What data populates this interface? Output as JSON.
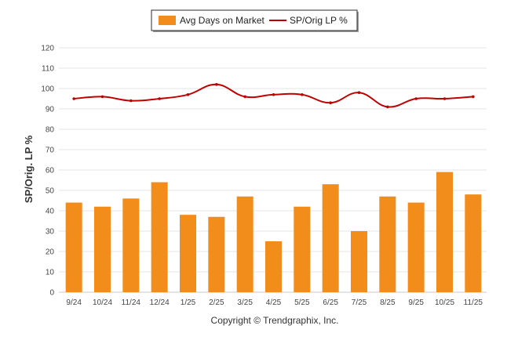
{
  "chart_data": {
    "type": "bar",
    "categories": [
      "9/24",
      "10/24",
      "11/24",
      "12/24",
      "1/25",
      "2/25",
      "3/25",
      "4/25",
      "5/25",
      "6/25",
      "7/25",
      "8/25",
      "9/25",
      "10/25",
      "11/25"
    ],
    "series": [
      {
        "name": "Avg Days on Market",
        "type": "bar",
        "color": "#F28C1B",
        "values": [
          44,
          42,
          46,
          54,
          38,
          37,
          47,
          25,
          42,
          53,
          30,
          47,
          44,
          59,
          48
        ]
      },
      {
        "name": "SP/Orig LP %",
        "type": "line",
        "color": "#C00000",
        "values": [
          95,
          96,
          94,
          95,
          97,
          102,
          96,
          97,
          97,
          93,
          98,
          91,
          95,
          95,
          96
        ]
      }
    ],
    "ylabel": "SP/Orig. LP %",
    "ylim": [
      0,
      120
    ],
    "yticks": [
      0,
      10,
      20,
      30,
      40,
      50,
      60,
      70,
      80,
      90,
      100,
      110,
      120
    ],
    "grid": true,
    "legend_position": "top-center"
  },
  "footer": {
    "copyright": "Copyright © Trendgraphix, Inc."
  }
}
